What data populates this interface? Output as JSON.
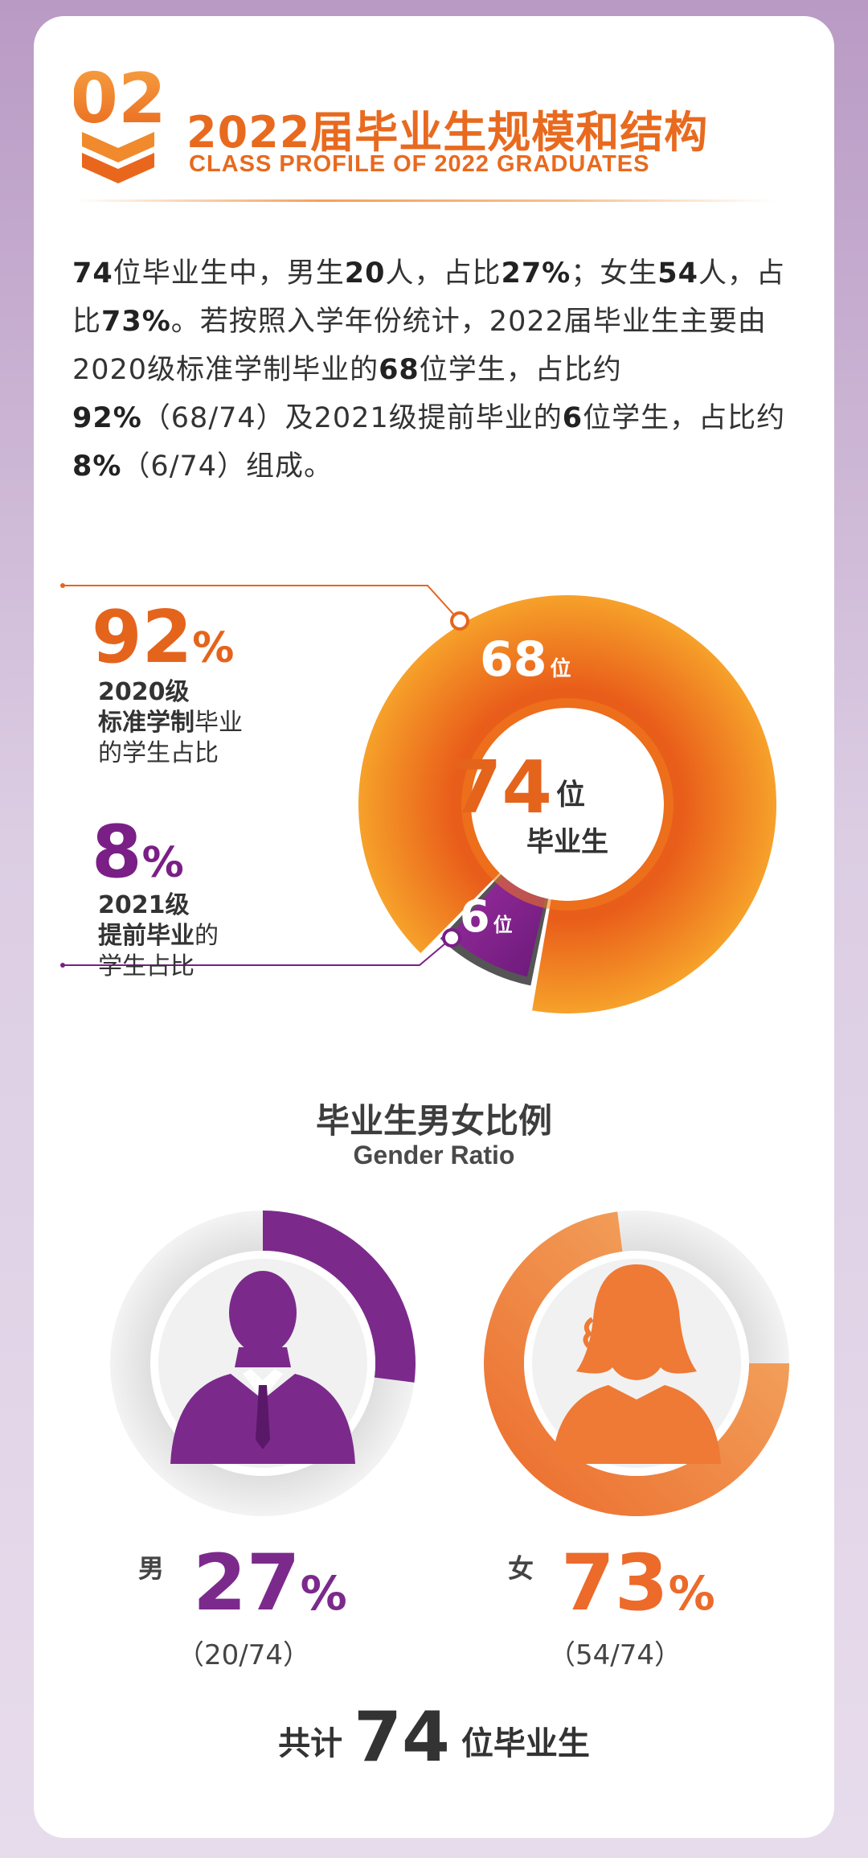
{
  "header": {
    "badge_number": "02",
    "title": "2022届毕业生规模和结构",
    "subtitle": "CLASS PROFILE OF 2022 GRADUATES"
  },
  "intro": {
    "s1": "74",
    "s2": "位毕业生中，男生",
    "s3": "20",
    "s4": "人，占比",
    "s5": "27%",
    "s6": "；女生",
    "s7": "54",
    "s8": "人，占比",
    "s9": "73%",
    "s10": "。若按照入学年份统计，2022届毕业生主要由2020级标准学制毕业的",
    "s11": "68",
    "s12": "位学生，占比约",
    "s13": "92%",
    "s14": "（68/74）及2021级提前毕业的",
    "s15": "6",
    "s16": "位学生，占比约",
    "s17": "8%",
    "s18": "（6/74）组成。"
  },
  "chart_data": [
    {
      "type": "pie",
      "donut": true,
      "center_total": "74",
      "center_unit": "位",
      "center_label": "毕业生",
      "slices": [
        {
          "label_top": "2020级",
          "label_bold": "标准学制",
          "label_rest": "毕业",
          "label_line3": "的学生占比",
          "count": 68,
          "count_label": "68",
          "unit": "位",
          "percent": 92,
          "percent_label": "92",
          "color": "#ef7a1f"
        },
        {
          "label_top": "2021级",
          "label_bold": "提前毕业",
          "label_rest": "的",
          "label_line3": "学生占比",
          "count": 6,
          "count_label": "6",
          "unit": "位",
          "percent": 8,
          "percent_label": "8",
          "color": "#7d2489"
        }
      ],
      "percent_symbol": "%"
    },
    {
      "type": "pie",
      "donut": true,
      "title": "毕业生男女比例",
      "subtitle": "Gender Ratio",
      "slices": [
        {
          "label": "男",
          "percent": 27,
          "percent_label": "27",
          "fraction": "（20/74）",
          "count": 20,
          "color": "#7b2a8c"
        },
        {
          "label": "女",
          "percent": 73,
          "percent_label": "73",
          "fraction": "（54/74）",
          "count": 54,
          "color": "#ee7a35"
        }
      ],
      "percent_symbol": "%",
      "total_prefix": "共计",
      "total_value": "74",
      "total_suffix": "位毕业生"
    }
  ]
}
